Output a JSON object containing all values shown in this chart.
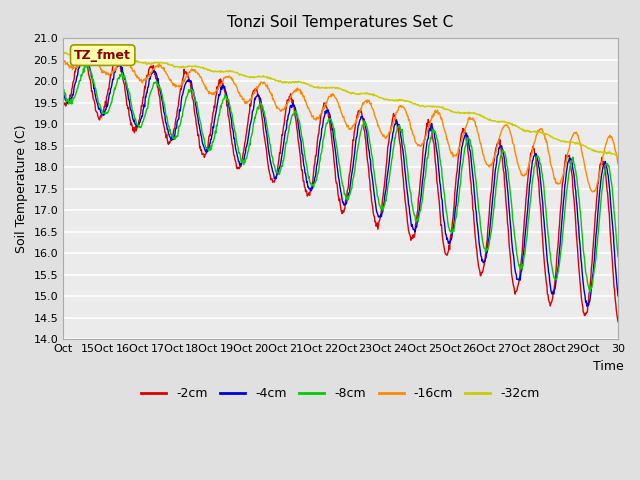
{
  "title": "Tonzi Soil Temperatures Set C",
  "xlabel": "Time",
  "ylabel": "Soil Temperature (C)",
  "annotation": "TZ_fmet",
  "ylim": [
    14.0,
    21.0
  ],
  "yticks": [
    14.0,
    14.5,
    15.0,
    15.5,
    16.0,
    16.5,
    17.0,
    17.5,
    18.0,
    18.5,
    19.0,
    19.5,
    20.0,
    20.5,
    21.0
  ],
  "xtick_labels": [
    "Oct",
    "15Oct",
    "16Oct",
    "17Oct",
    "18Oct",
    "19Oct",
    "20Oct",
    "21Oct",
    "22Oct",
    "23Oct",
    "24Oct",
    "25Oct",
    "26Oct",
    "27Oct",
    "28Oct",
    "29Oct",
    "30"
  ],
  "legend": [
    "-2cm",
    "-4cm",
    "-8cm",
    "-16cm",
    "-32cm"
  ],
  "colors": [
    "#dd0000",
    "#0000dd",
    "#00cc00",
    "#ff8800",
    "#cccc00"
  ],
  "bg_color": "#e0e0e0",
  "plot_bg_color": "#ebebeb",
  "grid_color": "#ffffff",
  "n_points": 960
}
